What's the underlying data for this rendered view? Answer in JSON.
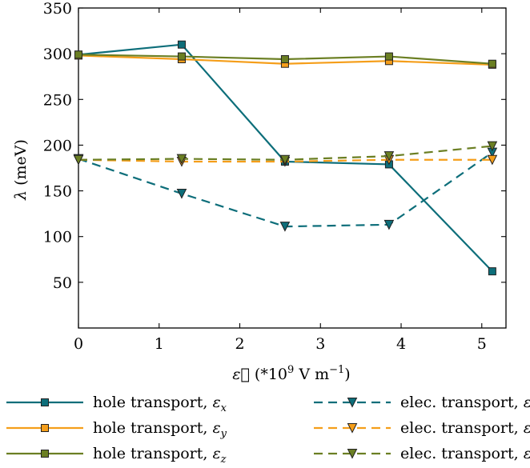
{
  "chart_data": {
    "type": "line",
    "xlabel": "ε⃗ (*10⁹ V m⁻¹)",
    "ylabel": "λ (meV)",
    "xlim": [
      0,
      5.3
    ],
    "ylim": [
      0,
      350
    ],
    "x_ticks": [
      0,
      1,
      2,
      3,
      4,
      5
    ],
    "y_ticks": [
      50,
      100,
      150,
      200,
      250,
      300,
      350
    ],
    "grid": false,
    "legend_position": "bottom",
    "series": [
      {
        "name": "hole transport, εx",
        "color": "#0d6e7a",
        "style": "solid",
        "marker": "square",
        "x": [
          0,
          1.28,
          2.56,
          3.85,
          5.13
        ],
        "y": [
          299,
          310,
          182,
          179,
          62
        ]
      },
      {
        "name": "hole transport, εy",
        "color": "#f59e1a",
        "style": "solid",
        "marker": "square",
        "x": [
          0,
          1.28,
          2.56,
          3.85,
          5.13
        ],
        "y": [
          298,
          294,
          289,
          292,
          288
        ]
      },
      {
        "name": "hole transport, εz",
        "color": "#6b7f23",
        "style": "solid",
        "marker": "square",
        "x": [
          0,
          1.28,
          2.56,
          3.85,
          5.13
        ],
        "y": [
          299,
          297,
          294,
          297,
          289
        ]
      },
      {
        "name": "elec. transport, εx",
        "color": "#0d6e7a",
        "style": "dashed",
        "marker": "triangle-down",
        "x": [
          0,
          1.28,
          2.56,
          3.85,
          5.13
        ],
        "y": [
          185,
          147,
          111,
          113,
          192
        ]
      },
      {
        "name": "elec. transport, εy",
        "color": "#f59e1a",
        "style": "dashed",
        "marker": "triangle-down",
        "x": [
          0,
          1.28,
          2.56,
          3.85,
          5.13
        ],
        "y": [
          184,
          182,
          182,
          184,
          184
        ]
      },
      {
        "name": "elec. transport, εz",
        "color": "#6b7f23",
        "style": "dashed",
        "marker": "triangle-down",
        "x": [
          0,
          1.28,
          2.56,
          3.85,
          5.13
        ],
        "y": [
          184,
          185,
          184,
          188,
          199
        ]
      }
    ]
  },
  "legend": {
    "items": [
      {
        "prefix": "hole transport, ",
        "sym": "ε",
        "sub": "x"
      },
      {
        "prefix": "elec. transport, ",
        "sym": "ε",
        "sub": "x"
      },
      {
        "prefix": "hole transport, ",
        "sym": "ε",
        "sub": "y"
      },
      {
        "prefix": "elec. transport, ",
        "sym": "ε",
        "sub": "y"
      },
      {
        "prefix": "hole transport, ",
        "sym": "ε",
        "sub": "z"
      },
      {
        "prefix": "elec. transport, ",
        "sym": "ε",
        "sub": "z"
      }
    ]
  },
  "axis_text": {
    "x_symbol": "ε⃗",
    "x_unit_open": " (*10",
    "x_unit_exp": "9",
    "x_unit_mid": " V m",
    "x_unit_exp2": "−1",
    "x_unit_close": ")",
    "y_symbol": "λ",
    "y_unit": " (meV)"
  }
}
